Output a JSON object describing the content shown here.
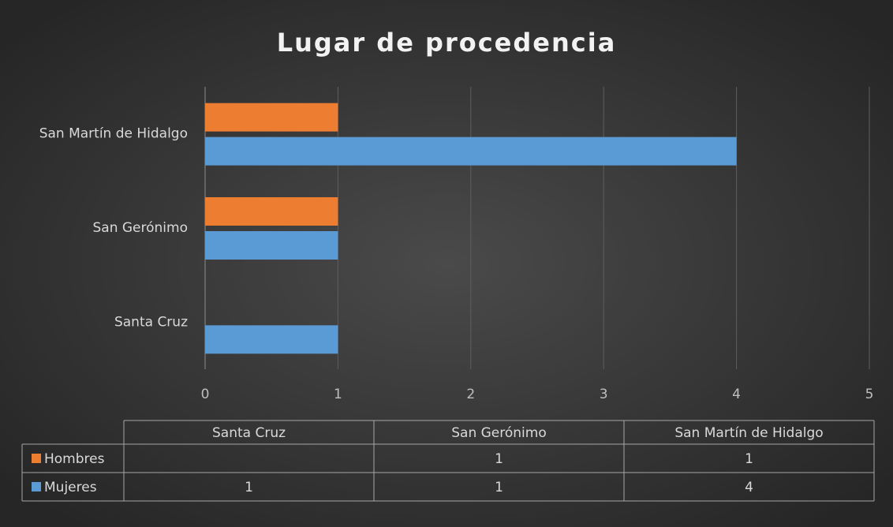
{
  "chart_data": {
    "type": "bar",
    "orientation": "horizontal",
    "title": "Lugar de procedencia",
    "categories": [
      "Santa Cruz",
      "San Gerónimo",
      "San Martín de Hidalgo"
    ],
    "series": [
      {
        "name": "Hombres",
        "color": "#ed7d31",
        "values": [
          null,
          1,
          1
        ]
      },
      {
        "name": "Mujeres",
        "color": "#5b9bd5",
        "values": [
          1,
          1,
          4
        ]
      }
    ],
    "xlim": [
      0,
      5
    ],
    "xticks": [
      0,
      1,
      2,
      3,
      4,
      5
    ],
    "grid": true,
    "data_table": true
  }
}
